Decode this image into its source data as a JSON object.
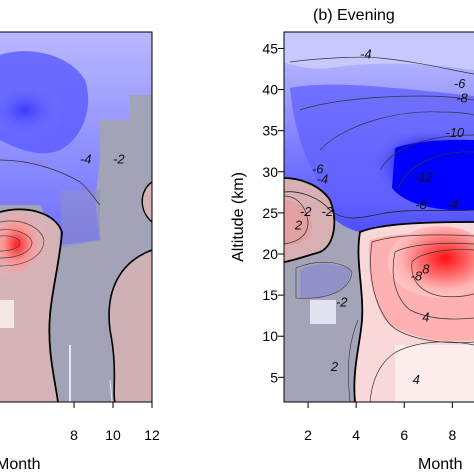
{
  "chart_data": [
    {
      "type": "heatmap",
      "panel": "left",
      "title": "",
      "xlabel": "Month",
      "ylabel": "",
      "x_ticks": [
        8,
        10,
        12
      ],
      "xlim": [
        4.2,
        12
      ],
      "contour_labels": [
        {
          "text": "-4",
          "x": 8.6,
          "y": 31
        },
        {
          "text": "-2",
          "x": 10.3,
          "y": 31
        }
      ]
    },
    {
      "type": "heatmap",
      "panel": "right",
      "title": "(b) Evening",
      "xlabel": "Month",
      "ylabel": "Altitude (km)",
      "x_ticks": [
        2,
        4,
        6,
        8
      ],
      "y_ticks": [
        5,
        10,
        15,
        20,
        25,
        30,
        35,
        40,
        45
      ],
      "xlim": [
        1,
        8.9
      ],
      "ylim": [
        2,
        47
      ],
      "colormap": {
        "negative": "#0000ff",
        "zero": "#a0a0b4",
        "positive": "#ff0000"
      },
      "contour_labels": [
        {
          "text": "-4",
          "x": 4.4,
          "y": 43.8
        },
        {
          "text": "-6",
          "x": 8.3,
          "y": 40.2
        },
        {
          "text": "-8",
          "x": 8.4,
          "y": 38.4
        },
        {
          "text": "-10",
          "x": 8.1,
          "y": 34.2
        },
        {
          "text": "-6",
          "x": 2.4,
          "y": 29.8
        },
        {
          "text": "-4",
          "x": 2.6,
          "y": 28.6
        },
        {
          "text": "-12",
          "x": 6.8,
          "y": 28.8
        },
        {
          "text": "-2",
          "x": 1.9,
          "y": 24.6
        },
        {
          "text": "-2",
          "x": 2.8,
          "y": 24.6
        },
        {
          "text": "-8",
          "x": 6.7,
          "y": 25.5
        },
        {
          "text": "-4",
          "x": 8.0,
          "y": 25.5
        },
        {
          "text": "2",
          "x": 1.6,
          "y": 23.0
        },
        {
          "text": "8",
          "x": 6.9,
          "y": 17.6
        },
        {
          "text": "-8",
          "x": 6.5,
          "y": 16.8
        },
        {
          "text": "-2",
          "x": 3.4,
          "y": 13.6
        },
        {
          "text": "4",
          "x": 6.9,
          "y": 11.8
        },
        {
          "text": "2",
          "x": 3.1,
          "y": 5.8
        },
        {
          "text": "4",
          "x": 6.5,
          "y": 4.2
        }
      ]
    }
  ]
}
